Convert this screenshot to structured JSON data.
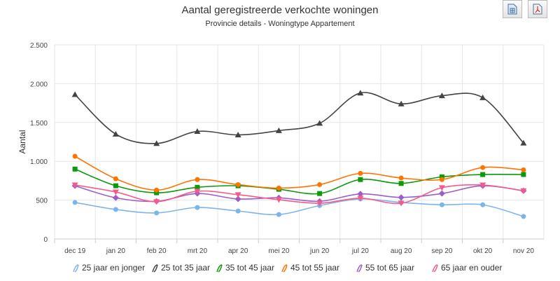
{
  "toolbar": {
    "icons": [
      "excel-export-icon",
      "pdf-export-icon"
    ]
  },
  "chart_data": {
    "type": "line",
    "title": "Aantal geregistreerde verkochte woningen",
    "subtitle": "Provincie details - Woningtype Appartement",
    "ylabel": "Aantal",
    "xlabel": "",
    "ylim": [
      0,
      2500
    ],
    "yticks": [
      0,
      500,
      1000,
      1500,
      2000,
      2500
    ],
    "ytick_labels": [
      "0",
      "500",
      "1.000",
      "1.500",
      "2.000",
      "2.500"
    ],
    "grid": true,
    "legend": "bottom",
    "categories": [
      "dec 19",
      "jan 20",
      "feb 20",
      "mrt 20",
      "apr 20",
      "mei 20",
      "jun 20",
      "jul 20",
      "aug 20",
      "sep 20",
      "okt 20",
      "nov 20"
    ],
    "series": [
      {
        "name": "25 jaar en jonger",
        "color": "#7cb5ec",
        "marker": "circle",
        "values": [
          470,
          380,
          335,
          405,
          360,
          315,
          430,
          515,
          470,
          440,
          440,
          290
        ]
      },
      {
        "name": "25 tot 35 jaar",
        "color": "#434348",
        "marker": "triangle",
        "values": [
          1860,
          1350,
          1230,
          1385,
          1340,
          1395,
          1490,
          1880,
          1740,
          1845,
          1820,
          1235
        ]
      },
      {
        "name": "35 tot 45 jaar",
        "color": "#0a9a0a",
        "marker": "square",
        "values": [
          900,
          685,
          595,
          665,
          685,
          640,
          585,
          765,
          715,
          800,
          830,
          830
        ]
      },
      {
        "name": "45 tot 55 jaar",
        "color": "#ff7300",
        "marker": "circle",
        "values": [
          1065,
          775,
          630,
          765,
          700,
          655,
          700,
          845,
          785,
          765,
          920,
          890
        ]
      },
      {
        "name": "55 tot 65 jaar",
        "color": "#9b5fc8",
        "marker": "diamond",
        "values": [
          685,
          530,
          485,
          585,
          515,
          530,
          485,
          580,
          535,
          585,
          685,
          620
        ]
      },
      {
        "name": "65 jaar en ouder",
        "color": "#f45b8c",
        "marker": "triangle-down",
        "values": [
          695,
          605,
          480,
          615,
          570,
          505,
          460,
          525,
          460,
          660,
          695,
          620
        ]
      }
    ]
  }
}
